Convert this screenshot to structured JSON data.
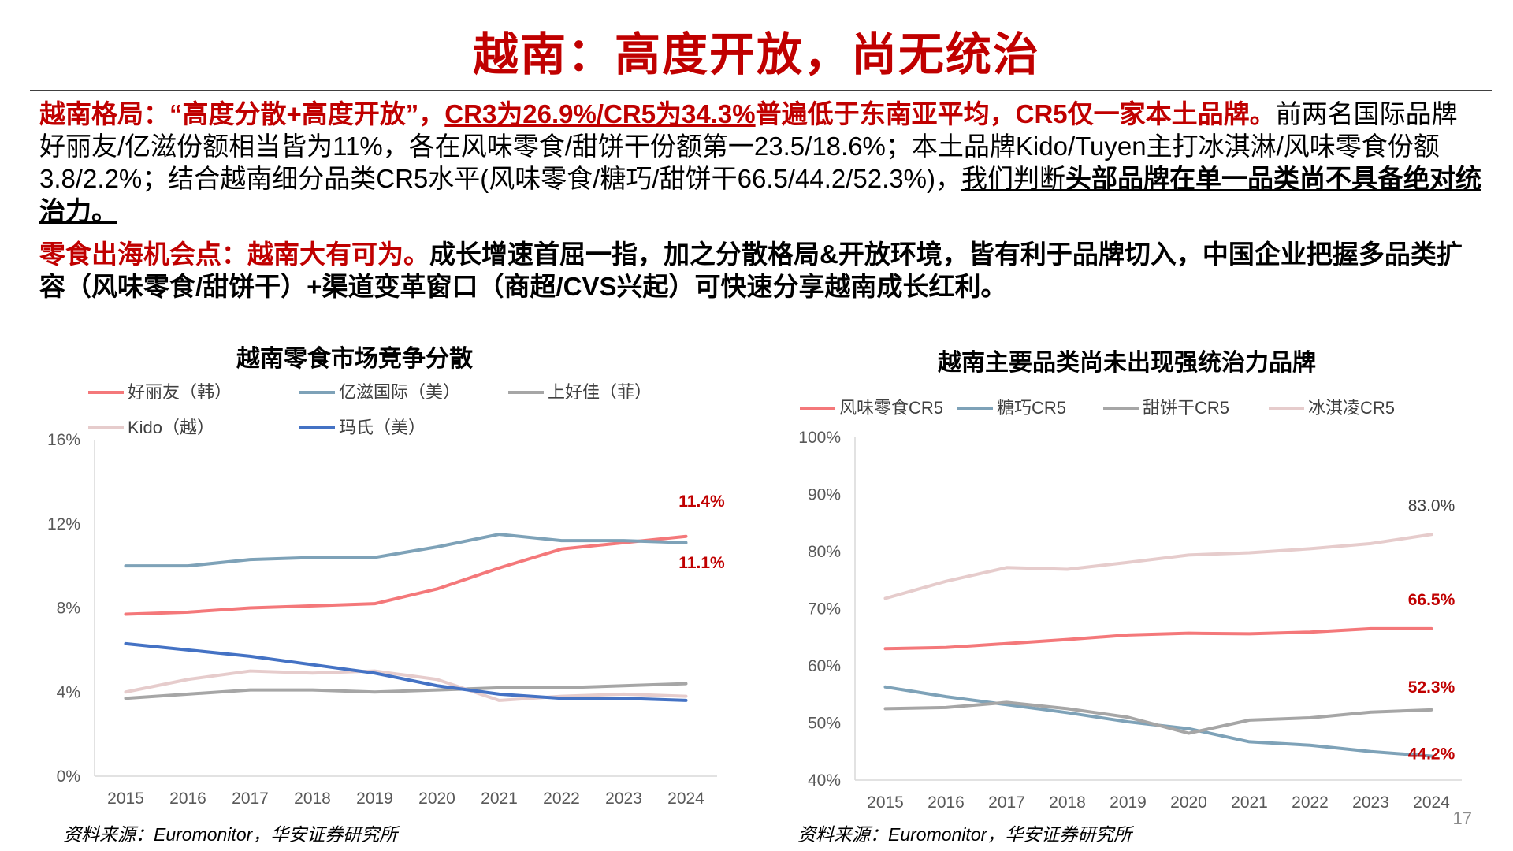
{
  "title": "越南：高度开放，尚无统治",
  "paragraph1": {
    "lead": "越南格局：“高度分散+高度开放”，",
    "cr_underlined": "CR3为26.9%/CR5为34.3%",
    "cr_rest": "普遍低于东南亚平均，CR5仅一家本土品牌。",
    "plain": "前两名国际品牌好丽友/亿滋份额相当皆为11%，各在风味零食/甜饼干份额第一23.5/18.6%；本土品牌Kido/Tuyen主打冰淇淋/风味零食份额3.8/2.2%；结合越南细分品类CR5水平(风味零食/糖巧/甜饼干66.5/44.2/52.3%)，",
    "judge_underlined": "我们判断",
    "judge_bold": "头部品牌在单一品类尚不具备绝对统治力。"
  },
  "paragraph2": {
    "lead": "零食出海机会点：越南大有可为。",
    "rest": "成长增速首屈一指，加之分散格局&开放环境，皆有利于品牌切入，中国企业把握多品类扩容（风味零食/甜饼干）+渠道变革窗口（商超/CVS兴起）可快速分享越南成长红利。"
  },
  "chart_data": [
    {
      "type": "line",
      "title": "越南零食市场竞争分散",
      "x": [
        "2015",
        "2016",
        "2017",
        "2018",
        "2019",
        "2020",
        "2021",
        "2022",
        "2023",
        "2024"
      ],
      "ylim": [
        0,
        16
      ],
      "yticks": [
        "0%",
        "4%",
        "8%",
        "12%",
        "16%"
      ],
      "ytick_values": [
        0,
        4,
        8,
        12,
        16
      ],
      "grid": false,
      "legend_position": "top-left",
      "series": [
        {
          "name": "好丽友（韩）",
          "color": "#f4787a",
          "values": [
            7.7,
            7.8,
            8.0,
            8.1,
            8.2,
            8.9,
            9.9,
            10.8,
            11.1,
            11.4
          ]
        },
        {
          "name": "亿滋国际（美）",
          "color": "#7ea2b8",
          "values": [
            10.0,
            10.0,
            10.3,
            10.4,
            10.4,
            10.9,
            11.5,
            11.2,
            11.2,
            11.1
          ]
        },
        {
          "name": "上好佳（菲）",
          "color": "#a6a6a6",
          "values": [
            3.7,
            3.9,
            4.1,
            4.1,
            4.0,
            4.1,
            4.2,
            4.2,
            4.3,
            4.4
          ]
        },
        {
          "name": "Kido（越）",
          "color": "#e6cccc",
          "values": [
            4.0,
            4.6,
            5.0,
            4.9,
            5.0,
            4.6,
            3.6,
            3.8,
            3.9,
            3.8
          ]
        },
        {
          "name": "玛氏（美）",
          "color": "#4472c4",
          "values": [
            6.3,
            6.0,
            5.7,
            5.3,
            4.9,
            4.3,
            3.9,
            3.7,
            3.7,
            3.6
          ]
        }
      ],
      "annotations": [
        {
          "text": "11.4%",
          "series": 0,
          "point": 9
        },
        {
          "text": "11.1%",
          "series": 1,
          "point": 9
        }
      ],
      "source": "资料来源：Euromonitor，华安证券研究所"
    },
    {
      "type": "line",
      "title": "越南主要品类尚未出现强统治力品牌",
      "x": [
        "2015",
        "2016",
        "2017",
        "2018",
        "2019",
        "2020",
        "2021",
        "2022",
        "2023",
        "2024"
      ],
      "ylim": [
        40,
        100
      ],
      "yticks": [
        "40%",
        "50%",
        "60%",
        "70%",
        "80%",
        "90%",
        "100%"
      ],
      "ytick_values": [
        40,
        50,
        60,
        70,
        80,
        90,
        100
      ],
      "grid": false,
      "legend_position": "top",
      "series": [
        {
          "name": "风味零食CR5",
          "color": "#f4787a",
          "values": [
            63.0,
            63.2,
            63.9,
            64.6,
            65.4,
            65.7,
            65.6,
            65.9,
            66.5,
            66.5
          ]
        },
        {
          "name": "糖巧CR5",
          "color": "#7ea2b8",
          "values": [
            56.3,
            54.6,
            53.2,
            51.8,
            50.2,
            49.0,
            46.7,
            46.1,
            45.0,
            44.2
          ]
        },
        {
          "name": "甜饼干CR5",
          "color": "#a6a6a6",
          "values": [
            52.5,
            52.7,
            53.6,
            52.5,
            51.0,
            48.2,
            50.5,
            50.9,
            51.9,
            52.3
          ]
        },
        {
          "name": "冰淇凌CR5",
          "color": "#e6cccc",
          "values": [
            71.8,
            74.8,
            77.2,
            76.9,
            78.1,
            79.4,
            79.8,
            80.5,
            81.4,
            83.0
          ]
        }
      ],
      "annotations": [
        {
          "text": "83.0%",
          "series": 3,
          "point": 9
        },
        {
          "text": "66.5%",
          "series": 0,
          "point": 9
        },
        {
          "text": "52.3%",
          "series": 2,
          "point": 9
        },
        {
          "text": "44.2%",
          "series": 1,
          "point": 9
        }
      ],
      "source": "资料来源：Euromonitor，华安证券研究所"
    }
  ],
  "page_number": "17"
}
